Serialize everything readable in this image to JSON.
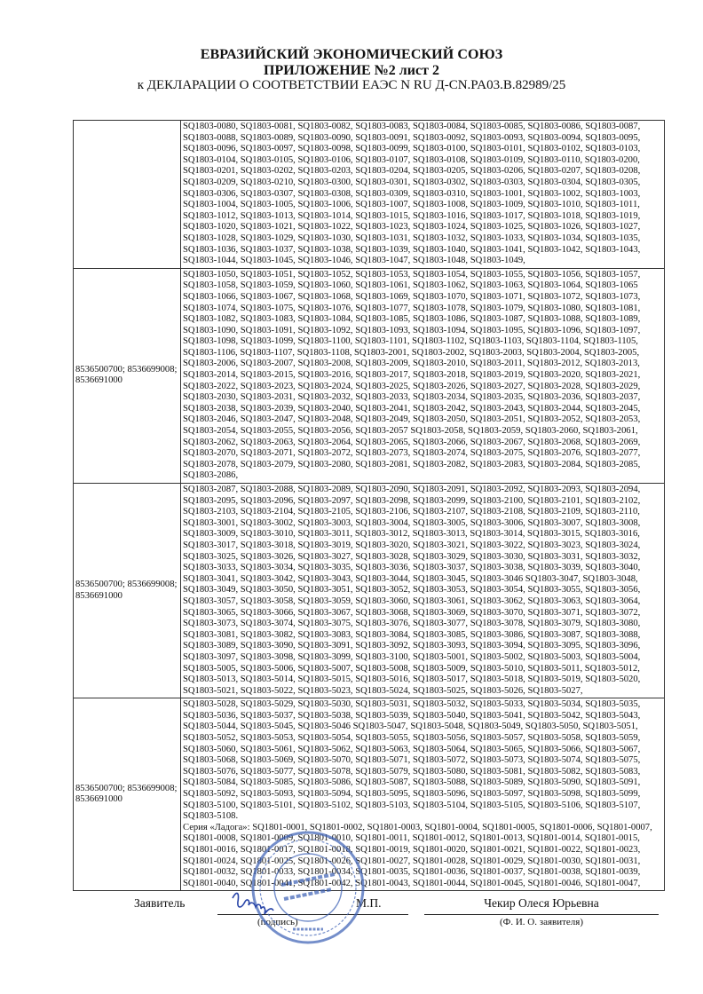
{
  "header": {
    "title": "ЕВРАЗИЙСКИЙ ЭКОНОМИЧЕСКИЙ СОЮЗ",
    "subtitle": "ПРИЛОЖЕНИЕ №2 лист 2",
    "declaration": "к ДЕКЛАРАЦИИ О СООТВЕТСТВИИ ЕАЭС N RU Д-CN.PA03.B.82989/25"
  },
  "table": {
    "rows": [
      {
        "code": "",
        "lines": [
          "SQ1803-0080, SQ1803-0081, SQ1803-0082, SQ1803-0083, SQ1803-0084, SQ1803-0085, SQ1803-0086, SQ1803-0087,",
          "SQ1803-0088, SQ1803-0089, SQ1803-0090, SQ1803-0091, SQ1803-0092, SQ1803-0093, SQ1803-0094, SQ1803-0095,",
          "SQ1803-0096, SQ1803-0097, SQ1803-0098, SQ1803-0099, SQ1803-0100, SQ1803-0101, SQ1803-0102, SQ1803-0103,",
          "SQ1803-0104, SQ1803-0105, SQ1803-0106, SQ1803-0107, SQ1803-0108, SQ1803-0109, SQ1803-0110, SQ1803-0200,",
          "SQ1803-0201, SQ1803-0202, SQ1803-0203, SQ1803-0204, SQ1803-0205, SQ1803-0206, SQ1803-0207, SQ1803-0208,",
          "SQ1803-0209, SQ1803-0210, SQ1803-0300, SQ1803-0301, SQ1803-0302, SQ1803-0303, SQ1803-0304, SQ1803-0305,",
          "SQ1803-0306, SQ1803-0307, SQ1803-0308, SQ1803-0309, SQ1803-0310, SQ1803-1001, SQ1803-1002, SQ1803-1003,",
          "SQ1803-1004, SQ1803-1005, SQ1803-1006, SQ1803-1007, SQ1803-1008, SQ1803-1009, SQ1803-1010, SQ1803-1011,",
          "SQ1803-1012, SQ1803-1013, SQ1803-1014, SQ1803-1015, SQ1803-1016, SQ1803-1017, SQ1803-1018, SQ1803-1019,",
          "SQ1803-1020, SQ1803-1021, SQ1803-1022, SQ1803-1023, SQ1803-1024, SQ1803-1025, SQ1803-1026, SQ1803-1027,",
          "SQ1803-1028, SQ1803-1029, SQ1803-1030, SQ1803-1031, SQ1803-1032, SQ1803-1033, SQ1803-1034, SQ1803-1035,",
          "SQ1803-1036, SQ1803-1037, SQ1803-1038, SQ1803-1039, SQ1803-1040, SQ1803-1041, SQ1803-1042, SQ1803-1043,",
          "SQ1803-1044, SQ1803-1045, SQ1803-1046, SQ1803-1047, SQ1803-1048, SQ1803-1049,"
        ]
      },
      {
        "code": "8536500700; 8536699008; 8536691000",
        "lines": [
          "SQ1803-1050, SQ1803-1051, SQ1803-1052, SQ1803-1053, SQ1803-1054, SQ1803-1055, SQ1803-1056, SQ1803-1057,",
          "SQ1803-1058, SQ1803-1059, SQ1803-1060, SQ1803-1061, SQ1803-1062, SQ1803-1063, SQ1803-1064, SQ1803-1065",
          "SQ1803-1066, SQ1803-1067, SQ1803-1068, SQ1803-1069, SQ1803-1070, SQ1803-1071, SQ1803-1072, SQ1803-1073,",
          "SQ1803-1074, SQ1803-1075, SQ1803-1076, SQ1803-1077, SQ1803-1078, SQ1803-1079, SQ1803-1080, SQ1803-1081,",
          "SQ1803-1082, SQ1803-1083, SQ1803-1084, SQ1803-1085, SQ1803-1086, SQ1803-1087, SQ1803-1088, SQ1803-1089,",
          "SQ1803-1090, SQ1803-1091, SQ1803-1092, SQ1803-1093, SQ1803-1094, SQ1803-1095, SQ1803-1096, SQ1803-1097,",
          "SQ1803-1098, SQ1803-1099, SQ1803-1100, SQ1803-1101, SQ1803-1102, SQ1803-1103, SQ1803-1104, SQ1803-1105,",
          "SQ1803-1106, SQ1803-1107, SQ1803-1108, SQ1803-2001, SQ1803-2002, SQ1803-2003, SQ1803-2004, SQ1803-2005,",
          "SQ1803-2006, SQ1803-2007, SQ1803-2008, SQ1803-2009, SQ1803-2010, SQ1803-2011, SQ1803-2012, SQ1803-2013,",
          "SQ1803-2014, SQ1803-2015, SQ1803-2016, SQ1803-2017, SQ1803-2018, SQ1803-2019, SQ1803-2020, SQ1803-2021,",
          "SQ1803-2022, SQ1803-2023, SQ1803-2024, SQ1803-2025, SQ1803-2026, SQ1803-2027, SQ1803-2028, SQ1803-2029,",
          "SQ1803-2030, SQ1803-2031, SQ1803-2032, SQ1803-2033, SQ1803-2034, SQ1803-2035, SQ1803-2036, SQ1803-2037,",
          "SQ1803-2038, SQ1803-2039, SQ1803-2040, SQ1803-2041, SQ1803-2042, SQ1803-2043, SQ1803-2044, SQ1803-2045,",
          "SQ1803-2046, SQ1803-2047, SQ1803-2048, SQ1803-2049, SQ1803-2050, SQ1803-2051, SQ1803-2052, SQ1803-2053,",
          "SQ1803-2054, SQ1803-2055, SQ1803-2056, SQ1803-2057 SQ1803-2058, SQ1803-2059, SQ1803-2060, SQ1803-2061,",
          "SQ1803-2062, SQ1803-2063, SQ1803-2064, SQ1803-2065, SQ1803-2066, SQ1803-2067, SQ1803-2068, SQ1803-2069,",
          "SQ1803-2070, SQ1803-2071, SQ1803-2072, SQ1803-2073, SQ1803-2074, SQ1803-2075, SQ1803-2076, SQ1803-2077,",
          "SQ1803-2078, SQ1803-2079, SQ1803-2080, SQ1803-2081, SQ1803-2082, SQ1803-2083, SQ1803-2084, SQ1803-2085,",
          "SQ1803-2086,"
        ]
      },
      {
        "code": "8536500700; 8536699008; 8536691000",
        "lines": [
          "SQ1803-2087, SQ1803-2088, SQ1803-2089, SQ1803-2090, SQ1803-2091, SQ1803-2092, SQ1803-2093, SQ1803-2094,",
          "SQ1803-2095, SQ1803-2096, SQ1803-2097, SQ1803-2098, SQ1803-2099, SQ1803-2100, SQ1803-2101, SQ1803-2102,",
          "SQ1803-2103, SQ1803-2104, SQ1803-2105, SQ1803-2106, SQ1803-2107, SQ1803-2108, SQ1803-2109, SQ1803-2110,",
          "SQ1803-3001, SQ1803-3002, SQ1803-3003, SQ1803-3004, SQ1803-3005, SQ1803-3006, SQ1803-3007, SQ1803-3008,",
          "SQ1803-3009, SQ1803-3010, SQ1803-3011, SQ1803-3012, SQ1803-3013, SQ1803-3014, SQ1803-3015, SQ1803-3016,",
          "SQ1803-3017, SQ1803-3018, SQ1803-3019, SQ1803-3020, SQ1803-3021, SQ1803-3022, SQ1803-3023, SQ1803-3024,",
          "SQ1803-3025, SQ1803-3026, SQ1803-3027, SQ1803-3028, SQ1803-3029, SQ1803-3030, SQ1803-3031, SQ1803-3032,",
          "SQ1803-3033, SQ1803-3034, SQ1803-3035, SQ1803-3036, SQ1803-3037, SQ1803-3038, SQ1803-3039, SQ1803-3040,",
          "SQ1803-3041, SQ1803-3042, SQ1803-3043, SQ1803-3044, SQ1803-3045, SQ1803-3046 SQ1803-3047, SQ1803-3048,",
          "SQ1803-3049, SQ1803-3050, SQ1803-3051, SQ1803-3052, SQ1803-3053, SQ1803-3054, SQ1803-3055, SQ1803-3056,",
          "SQ1803-3057, SQ1803-3058, SQ1803-3059, SQ1803-3060, SQ1803-3061, SQ1803-3062, SQ1803-3063, SQ1803-3064,",
          "SQ1803-3065, SQ1803-3066, SQ1803-3067, SQ1803-3068, SQ1803-3069, SQ1803-3070, SQ1803-3071, SQ1803-3072,",
          "SQ1803-3073, SQ1803-3074, SQ1803-3075, SQ1803-3076, SQ1803-3077, SQ1803-3078, SQ1803-3079, SQ1803-3080,",
          "SQ1803-3081, SQ1803-3082, SQ1803-3083, SQ1803-3084, SQ1803-3085, SQ1803-3086, SQ1803-3087, SQ1803-3088,",
          "SQ1803-3089, SQ1803-3090, SQ1803-3091, SQ1803-3092, SQ1803-3093, SQ1803-3094, SQ1803-3095, SQ1803-3096,",
          "SQ1803-3097, SQ1803-3098, SQ1803-3099, SQ1803-3100, SQ1803-5001, SQ1803-5002, SQ1803-5003, SQ1803-5004,",
          "SQ1803-5005, SQ1803-5006, SQ1803-5007, SQ1803-5008, SQ1803-5009, SQ1803-5010, SQ1803-5011, SQ1803-5012,",
          "SQ1803-5013, SQ1803-5014, SQ1803-5015, SQ1803-5016, SQ1803-5017, SQ1803-5018, SQ1803-5019, SQ1803-5020,",
          "SQ1803-5021, SQ1803-5022, SQ1803-5023, SQ1803-5024, SQ1803-5025, SQ1803-5026, SQ1803-5027,"
        ]
      },
      {
        "code": "8536500700; 8536699008; 8536691000",
        "lines": [
          "SQ1803-5028, SQ1803-5029, SQ1803-5030, SQ1803-5031, SQ1803-5032, SQ1803-5033, SQ1803-5034, SQ1803-5035,",
          "SQ1803-5036, SQ1803-5037, SQ1803-5038, SQ1803-5039, SQ1803-5040, SQ1803-5041, SQ1803-5042, SQ1803-5043,",
          "SQ1803-5044, SQ1803-5045, SQ1803-5046 SQ1803-5047, SQ1803-5048, SQ1803-5049, SQ1803-5050, SQ1803-5051,",
          "SQ1803-5052, SQ1803-5053, SQ1803-5054, SQ1803-5055, SQ1803-5056, SQ1803-5057, SQ1803-5058, SQ1803-5059,",
          "SQ1803-5060, SQ1803-5061, SQ1803-5062, SQ1803-5063, SQ1803-5064, SQ1803-5065, SQ1803-5066, SQ1803-5067,",
          "SQ1803-5068, SQ1803-5069, SQ1803-5070, SQ1803-5071, SQ1803-5072, SQ1803-5073, SQ1803-5074, SQ1803-5075,",
          "SQ1803-5076, SQ1803-5077, SQ1803-5078, SQ1803-5079, SQ1803-5080, SQ1803-5081, SQ1803-5082, SQ1803-5083,",
          "SQ1803-5084, SQ1803-5085, SQ1803-5086, SQ1803-5087, SQ1803-5088, SQ1803-5089, SQ1803-5090, SQ1803-5091,",
          "SQ1803-5092, SQ1803-5093, SQ1803-5094, SQ1803-5095, SQ1803-5096, SQ1803-5097, SQ1803-5098, SQ1803-5099,",
          "SQ1803-5100, SQ1803-5101, SQ1803-5102, SQ1803-5103, SQ1803-5104, SQ1803-5105, SQ1803-5106, SQ1803-5107,",
          "SQ1803-5108.",
          "Серия «Ладога»: SQ1801-0001, SQ1801-0002, SQ1801-0003, SQ1801-0004, SQ1801-0005, SQ1801-0006, SQ1801-0007,",
          "SQ1801-0008, SQ1801-0009, SQ1801-0010, SQ1801-0011, SQ1801-0012, SQ1801-0013, SQ1801-0014, SQ1801-0015,",
          "SQ1801-0016, SQ1801-0017, SQ1801-0018, SQ1801-0019, SQ1801-0020, SQ1801-0021, SQ1801-0022, SQ1801-0023,",
          "SQ1801-0024, SQ1801-0025, SQ1801-0026, SQ1801-0027, SQ1801-0028, SQ1801-0029, SQ1801-0030, SQ1801-0031,",
          "SQ1801-0032, SQ1801-0033, SQ1801-0034, SQ1801-0035, SQ1801-0036, SQ1801-0037, SQ1801-0038, SQ1801-0039,",
          "SQ1801-0040, SQ1801-0041, SQ1801-0042, SQ1801-0043, SQ1801-0044, SQ1801-0045, SQ1801-0046, SQ1801-0047,"
        ]
      }
    ]
  },
  "footer": {
    "applicant_label": "Заявитель",
    "signature_caption": "(подпись)",
    "seal_label": "М.П.",
    "applicant_name": "Чекир Олеся Юрьевна",
    "name_caption": "(Ф. И. О. заявителя)"
  },
  "stamp": {
    "text": "Торговый дом Морозово",
    "city": "МОСКВА",
    "color": "#3a5fb5"
  }
}
